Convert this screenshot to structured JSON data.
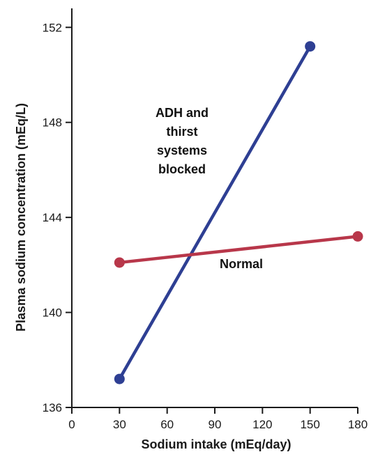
{
  "chart_data": {
    "type": "line",
    "xlabel": "Sodium intake (mEq/day)",
    "ylabel": "Plasma sodium concentration (mEq/L)",
    "xlim": [
      0,
      180
    ],
    "ylim": [
      136,
      152.8
    ],
    "xticks": [
      0,
      30,
      60,
      90,
      120,
      150,
      180
    ],
    "yticks": [
      136,
      140,
      144,
      148,
      152
    ],
    "grid": false,
    "series": [
      {
        "name": "ADH and thirst systems blocked",
        "color": "#2e3f93",
        "x": [
          30,
          150
        ],
        "y": [
          137.2,
          151.2
        ]
      },
      {
        "name": "Normal",
        "color": "#b8374a",
        "x": [
          30,
          180
        ],
        "y": [
          142.1,
          143.2
        ]
      }
    ],
    "annotations": [
      {
        "lines": [
          "ADH and",
          "thirst",
          "systems",
          "blocked"
        ]
      },
      {
        "lines": [
          "Normal"
        ]
      }
    ]
  }
}
